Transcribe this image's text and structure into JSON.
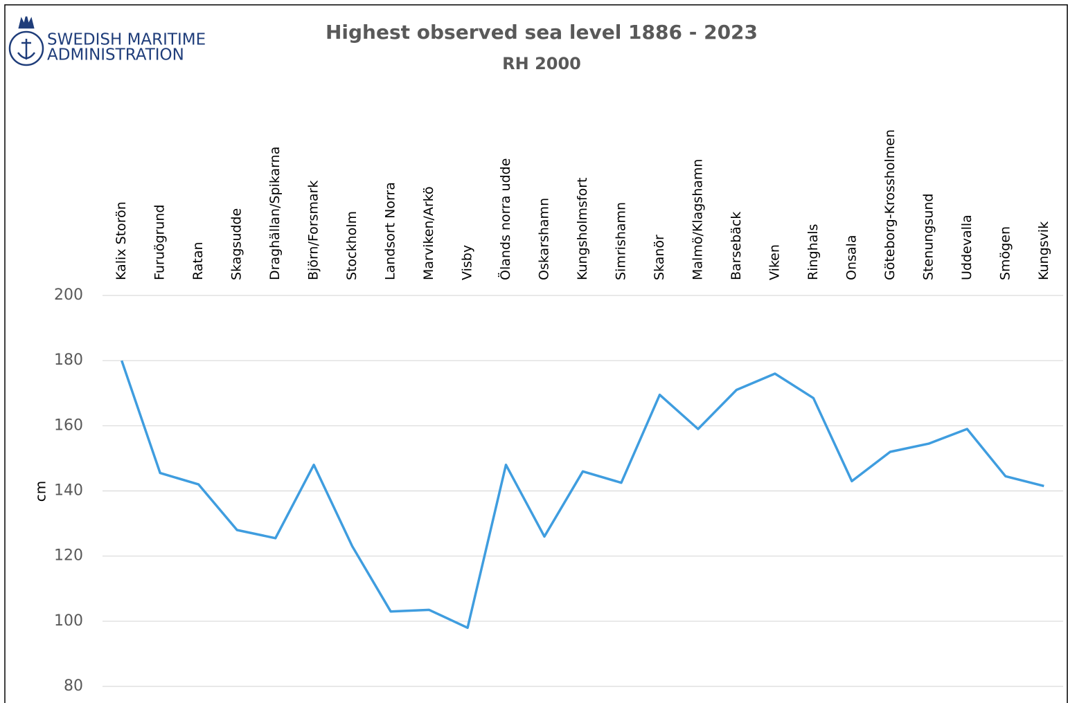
{
  "chart_data": {
    "type": "line",
    "title": "Highest observed sea level 1886 - 2023",
    "subtitle": "RH 2000",
    "logo_text": [
      "SWEDISH MARITIME",
      "ADMINISTRATION"
    ],
    "y_label": "cm",
    "categories": [
      "Kalix Storön",
      "Furuögrund",
      "Ratan",
      "Skagsudde",
      "Draghällan/Spikarna",
      "Björn/Forsmark",
      "Stockholm",
      "Landsort Norra",
      "Marviken/Arkö",
      "Visby",
      "Ölands norra udde",
      "Oskarshamn",
      "Kungsholmsfort",
      "Simrishamn",
      "Skanör",
      "Malmö/Klagshamn",
      "Barsebäck",
      "Viken",
      "Ringhals",
      "Onsala",
      "Göteborg-Krossholmen",
      "Stenungsund",
      "Uddevalla",
      "Smögen",
      "Kungsvik"
    ],
    "values": [
      180,
      145.5,
      142,
      128,
      125.5,
      148,
      123,
      103,
      103.5,
      98,
      148,
      126,
      146,
      142.5,
      169.5,
      159,
      171,
      176,
      168.5,
      143,
      152,
      154.5,
      159,
      144.5,
      141.5
    ],
    "color": "#3f9ddf",
    "ylim": [
      80,
      200
    ],
    "yticks": [
      80,
      100,
      120,
      140,
      160,
      180,
      200
    ],
    "grid": true
  }
}
